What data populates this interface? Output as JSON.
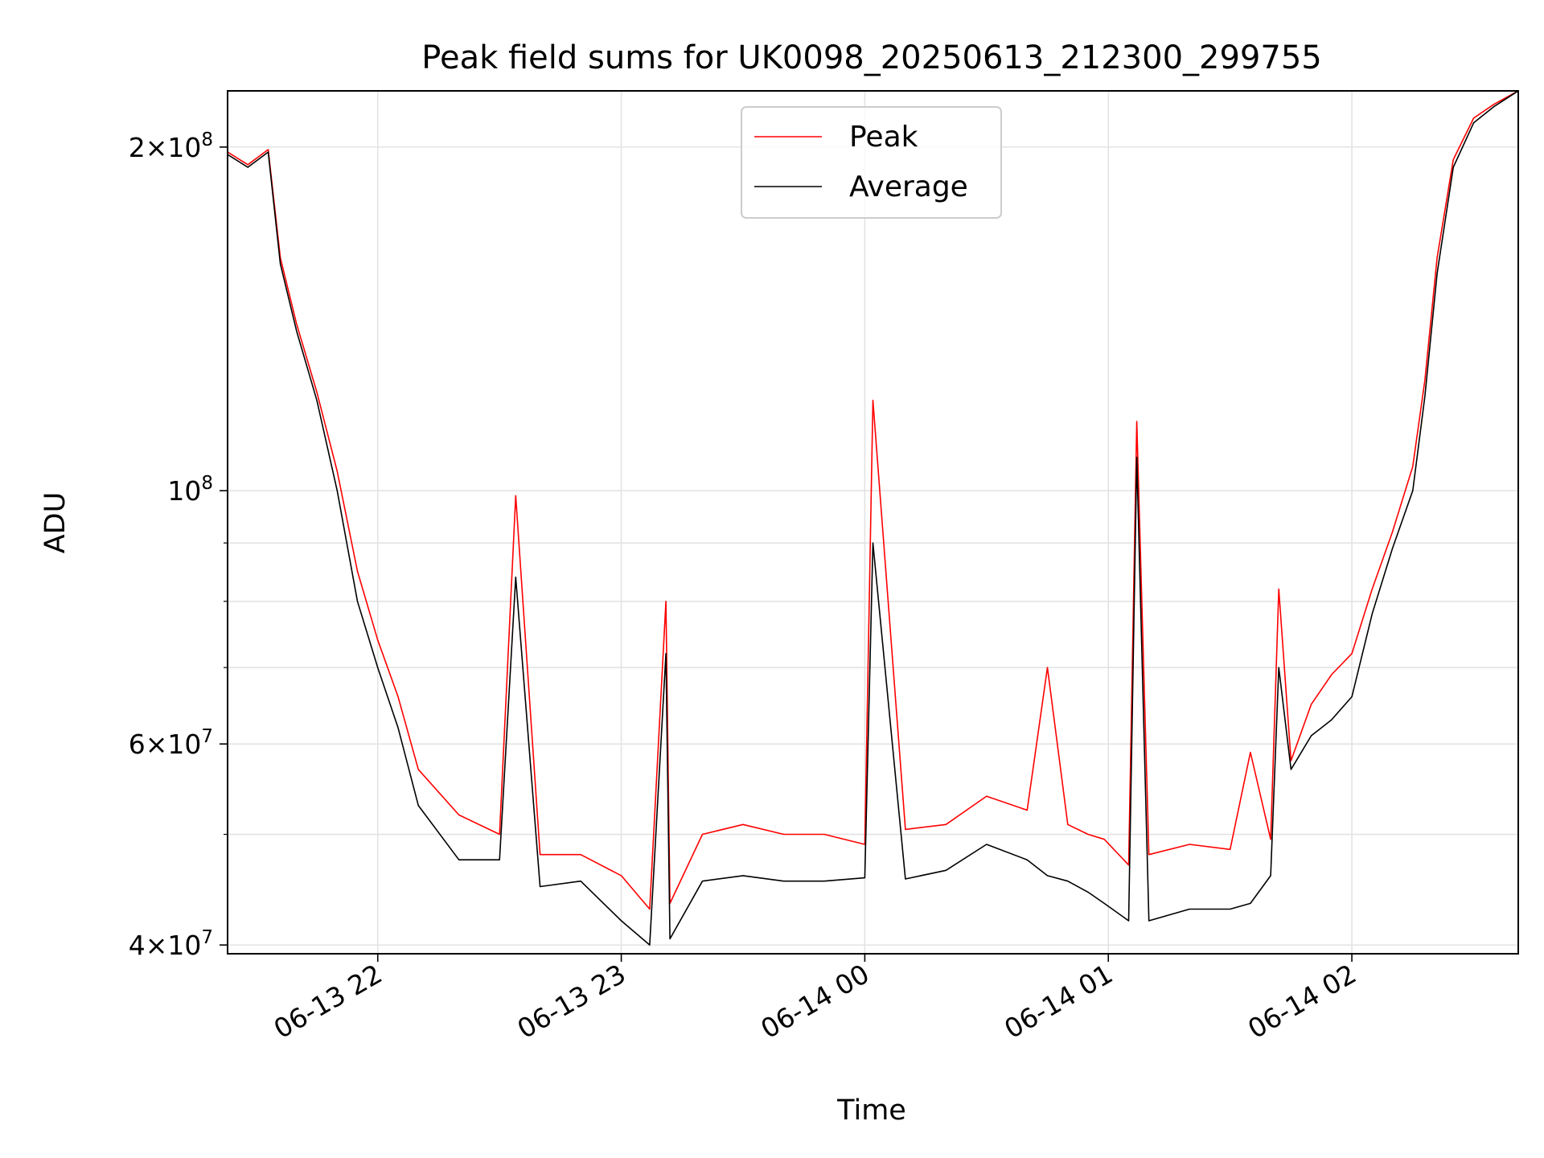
{
  "chart_data": {
    "type": "line",
    "title": "Peak field sums for UK0098_20250613_212300_299755",
    "xlabel": "Time",
    "ylabel": "ADU",
    "yscale": "log",
    "xlim": [
      "2025-06-13 21:23",
      "2025-06-14 02:41"
    ],
    "ylim": [
      39300000,
      224000000
    ],
    "grid": true,
    "legend": "upper center",
    "x_ticks": [
      {
        "t": "2025-06-13 22:00",
        "label": "06-13 22"
      },
      {
        "t": "2025-06-13 23:00",
        "label": "06-13 23"
      },
      {
        "t": "2025-06-14 00:00",
        "label": "06-14 00"
      },
      {
        "t": "2025-06-14 01:00",
        "label": "06-14 01"
      },
      {
        "t": "2025-06-14 02:00",
        "label": "06-14 02"
      }
    ],
    "y_ticks": [
      {
        "value": 40000000,
        "mant": "4",
        "exp": "7"
      },
      {
        "value": 60000000,
        "mant": "6",
        "exp": "7"
      },
      {
        "value": 100000000,
        "mant": "",
        "exp": "8"
      },
      {
        "value": 200000000,
        "mant": "2",
        "exp": "8"
      }
    ],
    "y_minor_ticks": [
      50000000,
      70000000,
      80000000,
      90000000
    ],
    "series": [
      {
        "name": "Peak",
        "color": "#ff0000",
        "x": [
          "2025-06-13 21:23",
          "2025-06-13 21:28",
          "2025-06-13 21:33",
          "2025-06-13 21:36",
          "2025-06-13 21:40",
          "2025-06-13 21:45",
          "2025-06-13 21:50",
          "2025-06-13 21:55",
          "2025-06-13 22:00",
          "2025-06-13 22:05",
          "2025-06-13 22:10",
          "2025-06-13 22:20",
          "2025-06-13 22:30",
          "2025-06-13 22:34",
          "2025-06-13 22:40",
          "2025-06-13 22:50",
          "2025-06-13 23:00",
          "2025-06-13 23:07",
          "2025-06-13 23:11",
          "2025-06-13 23:12",
          "2025-06-13 23:20",
          "2025-06-13 23:30",
          "2025-06-13 23:40",
          "2025-06-13 23:50",
          "2025-06-14 00:00",
          "2025-06-14 00:02",
          "2025-06-14 00:10",
          "2025-06-14 00:20",
          "2025-06-14 00:30",
          "2025-06-14 00:40",
          "2025-06-14 00:45",
          "2025-06-14 00:50",
          "2025-06-14 00:55",
          "2025-06-14 00:59",
          "2025-06-14 01:05",
          "2025-06-14 01:07",
          "2025-06-14 01:10",
          "2025-06-14 01:20",
          "2025-06-14 01:30",
          "2025-06-14 01:35",
          "2025-06-14 01:40",
          "2025-06-14 01:42",
          "2025-06-14 01:45",
          "2025-06-14 01:50",
          "2025-06-14 01:55",
          "2025-06-14 02:00",
          "2025-06-14 02:05",
          "2025-06-14 02:10",
          "2025-06-14 02:15",
          "2025-06-14 02:18",
          "2025-06-14 02:21",
          "2025-06-14 02:25",
          "2025-06-14 02:30",
          "2025-06-14 02:35",
          "2025-06-14 02:41"
        ],
        "values": [
          198000000,
          193000000,
          199000000,
          160000000,
          140000000,
          122000000,
          104000000,
          85000000,
          74000000,
          66000000,
          57000000,
          52000000,
          50000000,
          99000000,
          48000000,
          48000000,
          46000000,
          43000000,
          80000000,
          43500000,
          50000000,
          51000000,
          50000000,
          50000000,
          49000000,
          120000000,
          50500000,
          51000000,
          54000000,
          52500000,
          70000000,
          51000000,
          50000000,
          49500000,
          47000000,
          115000000,
          48000000,
          49000000,
          48500000,
          59000000,
          49500000,
          82000000,
          58000000,
          65000000,
          69000000,
          72000000,
          82000000,
          92000000,
          105000000,
          125000000,
          160000000,
          195000000,
          212000000,
          218000000,
          224000000
        ]
      },
      {
        "name": "Average",
        "color": "#000000",
        "x": [
          "2025-06-13 21:23",
          "2025-06-13 21:28",
          "2025-06-13 21:33",
          "2025-06-13 21:36",
          "2025-06-13 21:40",
          "2025-06-13 21:45",
          "2025-06-13 21:50",
          "2025-06-13 21:55",
          "2025-06-13 22:00",
          "2025-06-13 22:05",
          "2025-06-13 22:10",
          "2025-06-13 22:20",
          "2025-06-13 22:30",
          "2025-06-13 22:34",
          "2025-06-13 22:40",
          "2025-06-13 22:50",
          "2025-06-13 23:00",
          "2025-06-13 23:07",
          "2025-06-13 23:11",
          "2025-06-13 23:12",
          "2025-06-13 23:20",
          "2025-06-13 23:30",
          "2025-06-13 23:40",
          "2025-06-13 23:50",
          "2025-06-14 00:00",
          "2025-06-14 00:02",
          "2025-06-14 00:10",
          "2025-06-14 00:20",
          "2025-06-14 00:30",
          "2025-06-14 00:40",
          "2025-06-14 00:45",
          "2025-06-14 00:50",
          "2025-06-14 00:55",
          "2025-06-14 00:59",
          "2025-06-14 01:05",
          "2025-06-14 01:07",
          "2025-06-14 01:10",
          "2025-06-14 01:20",
          "2025-06-14 01:30",
          "2025-06-14 01:35",
          "2025-06-14 01:40",
          "2025-06-14 01:42",
          "2025-06-14 01:45",
          "2025-06-14 01:50",
          "2025-06-14 01:55",
          "2025-06-14 02:00",
          "2025-06-14 02:05",
          "2025-06-14 02:10",
          "2025-06-14 02:15",
          "2025-06-14 02:18",
          "2025-06-14 02:21",
          "2025-06-14 02:25",
          "2025-06-14 02:30",
          "2025-06-14 02:35",
          "2025-06-14 02:41"
        ],
        "values": [
          197000000,
          192000000,
          198000000,
          158000000,
          138000000,
          120000000,
          100000000,
          80000000,
          70000000,
          62000000,
          53000000,
          47500000,
          47500000,
          84000000,
          45000000,
          45500000,
          42000000,
          40000000,
          72000000,
          40500000,
          45500000,
          46000000,
          45500000,
          45500000,
          45800000,
          90000000,
          45700000,
          46500000,
          49000000,
          47500000,
          46000000,
          45500000,
          44500000,
          43500000,
          42000000,
          107000000,
          42000000,
          43000000,
          43000000,
          43500000,
          46000000,
          70000000,
          57000000,
          61000000,
          63000000,
          66000000,
          78000000,
          89000000,
          100000000,
          121000000,
          155000000,
          192000000,
          210000000,
          217000000,
          224000000
        ]
      }
    ]
  }
}
